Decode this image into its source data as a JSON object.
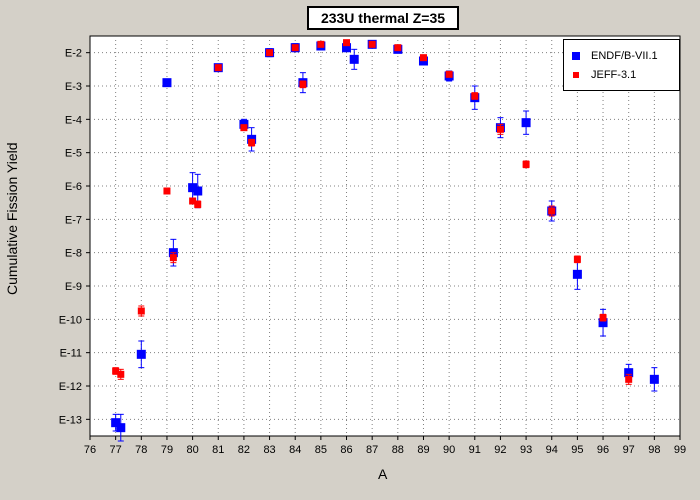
{
  "chart_data": {
    "type": "scatter",
    "title": "233U thermal Z=35",
    "xlabel": "A",
    "ylabel": "Cumulative Fission Yield",
    "xlim": [
      76,
      99
    ],
    "ylim_exponent": [
      -13.5,
      -1.5
    ],
    "y_scale": "log",
    "x_ticks": [
      "76",
      "77",
      "78",
      "79",
      "80",
      "81",
      "82",
      "83",
      "84",
      "85",
      "86",
      "87",
      "88",
      "89",
      "90",
      "91",
      "92",
      "93",
      "94",
      "95",
      "96",
      "97",
      "98",
      "99"
    ],
    "y_ticks": [
      "E-2",
      "E-3",
      "E-4",
      "E-5",
      "E-6",
      "E-7",
      "E-8",
      "E-9",
      "E-10",
      "E-11",
      "E-12",
      "E-13"
    ],
    "grid": true,
    "legend_position": "top-right",
    "series": [
      {
        "name": "ENDF/B-VII.1",
        "color": "#0000ff",
        "marker": "square",
        "points": [
          {
            "x": 77.0,
            "y_exp": -13.1,
            "err": 0.25
          },
          {
            "x": 77.2,
            "y_exp": -13.25,
            "err": 0.4
          },
          {
            "x": 78.0,
            "y_exp": -11.05,
            "err": 0.4
          },
          {
            "x": 79.0,
            "y_exp": -2.9,
            "err": 0.1
          },
          {
            "x": 79.25,
            "y_exp": -8.0,
            "err": 0.4
          },
          {
            "x": 80.0,
            "y_exp": -6.05,
            "err": 0.45
          },
          {
            "x": 80.2,
            "y_exp": -6.15,
            "err": 0.5
          },
          {
            "x": 81.0,
            "y_exp": -2.45,
            "err": 0.1
          },
          {
            "x": 82.0,
            "y_exp": -4.15,
            "err": 0.15
          },
          {
            "x": 82.3,
            "y_exp": -4.6,
            "err": 0.35
          },
          {
            "x": 83.0,
            "y_exp": -2.0,
            "err": 0.12
          },
          {
            "x": 84.0,
            "y_exp": -1.85,
            "err": 0.12
          },
          {
            "x": 84.3,
            "y_exp": -2.9,
            "err": 0.3
          },
          {
            "x": 85.0,
            "y_exp": -1.8,
            "err": 0.12
          },
          {
            "x": 86.0,
            "y_exp": -1.85,
            "err": 0.12
          },
          {
            "x": 86.3,
            "y_exp": -2.2,
            "err": 0.3
          },
          {
            "x": 87.0,
            "y_exp": -1.75,
            "err": 0.1
          },
          {
            "x": 88.0,
            "y_exp": -1.9,
            "err": 0.1
          },
          {
            "x": 89.0,
            "y_exp": -2.25,
            "err": 0.12
          },
          {
            "x": 90.0,
            "y_exp": -2.7,
            "err": 0.15
          },
          {
            "x": 91.0,
            "y_exp": -3.35,
            "err": 0.35
          },
          {
            "x": 92.0,
            "y_exp": -4.25,
            "err": 0.3
          },
          {
            "x": 93.0,
            "y_exp": -4.1,
            "err": 0.35
          },
          {
            "x": 94.0,
            "y_exp": -6.75,
            "err": 0.3
          },
          {
            "x": 95.0,
            "y_exp": -8.65,
            "err": 0.45
          },
          {
            "x": 96.0,
            "y_exp": -10.1,
            "err": 0.4
          },
          {
            "x": 97.0,
            "y_exp": -11.6,
            "err": 0.25
          },
          {
            "x": 98.0,
            "y_exp": -11.8,
            "err": 0.35
          }
        ]
      },
      {
        "name": "JEFF-3.1",
        "color": "#ff0000",
        "marker": "square",
        "points": [
          {
            "x": 77.0,
            "y_exp": -11.55,
            "err": 0.1
          },
          {
            "x": 77.2,
            "y_exp": -11.65,
            "err": 0.15
          },
          {
            "x": 78.0,
            "y_exp": -9.75,
            "err": 0.15
          },
          {
            "x": 79.0,
            "y_exp": -6.15,
            "err": 0.05
          },
          {
            "x": 79.25,
            "y_exp": -8.15,
            "err": 0.15
          },
          {
            "x": 80.0,
            "y_exp": -6.45,
            "err": 0.05
          },
          {
            "x": 80.2,
            "y_exp": -6.55,
            "err": 0.1
          },
          {
            "x": 81.0,
            "y_exp": -2.45,
            "err": 0.05
          },
          {
            "x": 82.0,
            "y_exp": -4.25,
            "err": 0.05
          },
          {
            "x": 82.3,
            "y_exp": -4.7,
            "err": 0.1
          },
          {
            "x": 83.0,
            "y_exp": -2.0,
            "err": 0.05
          },
          {
            "x": 84.0,
            "y_exp": -1.85,
            "err": 0.05
          },
          {
            "x": 84.3,
            "y_exp": -2.95,
            "err": 0.1
          },
          {
            "x": 85.0,
            "y_exp": -1.75,
            "err": 0.05
          },
          {
            "x": 86.0,
            "y_exp": -1.7,
            "err": 0.05
          },
          {
            "x": 87.0,
            "y_exp": -1.75,
            "err": 0.05
          },
          {
            "x": 88.0,
            "y_exp": -1.85,
            "err": 0.05
          },
          {
            "x": 89.0,
            "y_exp": -2.15,
            "err": 0.05
          },
          {
            "x": 90.0,
            "y_exp": -2.65,
            "err": 0.05
          },
          {
            "x": 91.0,
            "y_exp": -3.3,
            "err": 0.1
          },
          {
            "x": 92.0,
            "y_exp": -4.3,
            "err": 0.15
          },
          {
            "x": 93.0,
            "y_exp": -5.35,
            "err": 0.1
          },
          {
            "x": 94.0,
            "y_exp": -6.75,
            "err": 0.15
          },
          {
            "x": 95.0,
            "y_exp": -8.2,
            "err": 0.1
          },
          {
            "x": 96.0,
            "y_exp": -9.95,
            "err": 0.1
          },
          {
            "x": 97.0,
            "y_exp": -11.8,
            "err": 0.15
          }
        ]
      }
    ]
  }
}
